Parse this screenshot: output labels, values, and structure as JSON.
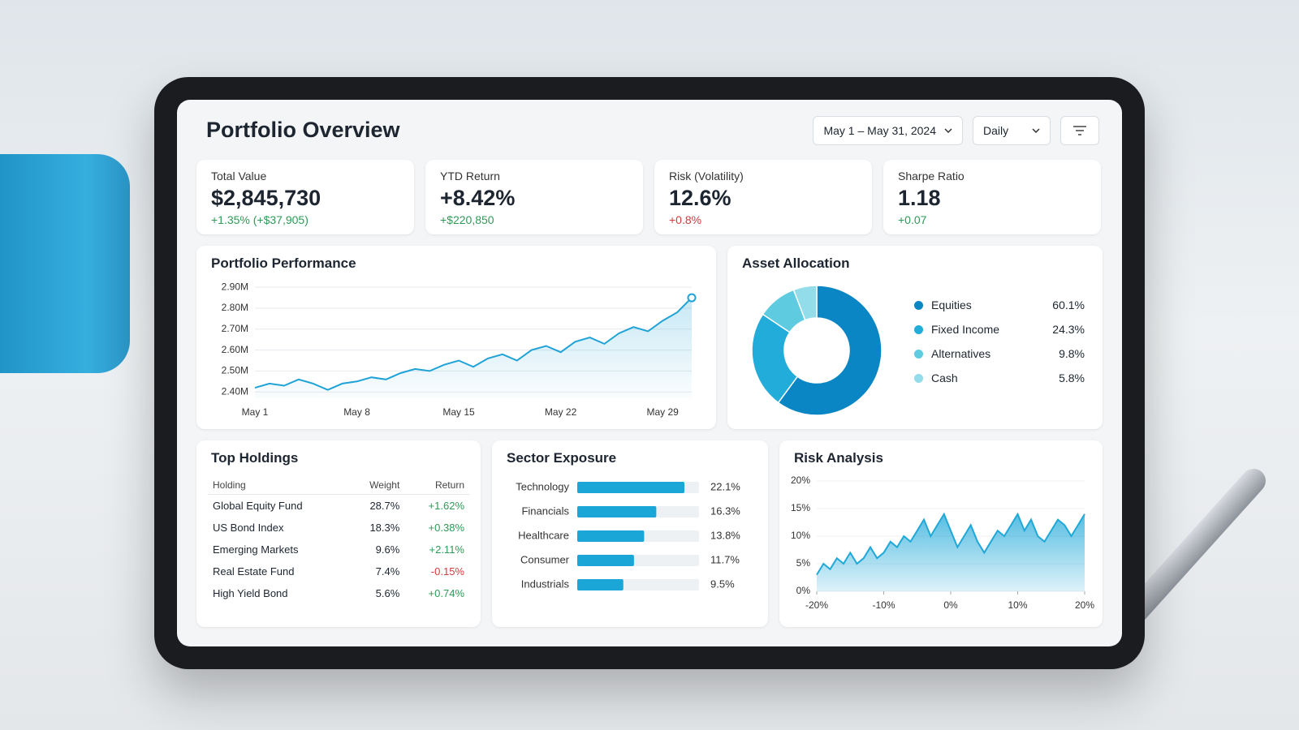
{
  "header": {
    "title": "Portfolio Overview",
    "date_range": "May 1 – May 31, 2024",
    "interval": "Daily"
  },
  "kpis": [
    {
      "label": "Total Value",
      "value": "$2,845,730",
      "change": "+1.35% (+$37,905)",
      "change_color": "#2e9a57"
    },
    {
      "label": "YTD Return",
      "value": "+8.42%",
      "change": "+$220,850",
      "change_color": "#2e9a57"
    },
    {
      "label": "Risk (Volatility)",
      "value": "12.6%",
      "change": "+0.8%",
      "change_color": "#d23b3b"
    },
    {
      "label": "Sharpe Ratio",
      "value": "1.18",
      "change": "+0.07",
      "change_color": "#2e9a57"
    }
  ],
  "performance": {
    "type": "line",
    "title": "Portfolio Performance",
    "categories": [
      "May 1",
      null,
      null,
      null,
      null,
      null,
      null,
      "May 8",
      null,
      null,
      null,
      null,
      null,
      null,
      "May 15",
      null,
      null,
      null,
      null,
      null,
      null,
      "May 22",
      null,
      null,
      null,
      null,
      null,
      null,
      "May 29",
      null,
      null
    ],
    "values": [
      2.42,
      2.44,
      2.43,
      2.46,
      2.44,
      2.41,
      2.44,
      2.45,
      2.47,
      2.46,
      2.49,
      2.51,
      2.5,
      2.53,
      2.55,
      2.52,
      2.56,
      2.58,
      2.55,
      2.6,
      2.62,
      2.59,
      2.64,
      2.66,
      2.63,
      2.68,
      2.71,
      2.69,
      2.74,
      2.78,
      2.85
    ],
    "color": "#1fa3d6",
    "ylim": [
      2.37,
      2.92
    ],
    "yticks": [
      {
        "value": 2.4,
        "label": "2.40M"
      },
      {
        "value": 2.5,
        "label": "2.50M"
      },
      {
        "value": 2.6,
        "label": "2.60M"
      },
      {
        "value": 2.7,
        "label": "2.70M"
      },
      {
        "value": 2.8,
        "label": "2.80M"
      },
      {
        "value": 2.9,
        "label": "2.90M"
      }
    ],
    "grid": true
  },
  "allocation": {
    "type": "donut",
    "title": "Asset Allocation",
    "categories": [
      "Equities",
      "Fixed Income",
      "Alternatives",
      "Cash"
    ],
    "values": [
      60.1,
      24.3,
      9.8,
      5.8
    ],
    "value_labels": [
      "60.1%",
      "24.3%",
      "9.8%",
      "5.8%"
    ],
    "colors": [
      "#0b86c4",
      "#22acd9",
      "#5ecbe0",
      "#93dcea"
    ]
  },
  "holdings": {
    "title": "Top Holdings",
    "columns": [
      "Holding",
      "Weight",
      "Return"
    ],
    "rows": [
      [
        "Global Equity Fund",
        "28.7%",
        "+1.62%"
      ],
      [
        "US Bond Index",
        "18.3%",
        "+0.38%"
      ],
      [
        "Emerging Markets",
        "9.6%",
        "+2.11%"
      ],
      [
        "Real Estate Fund",
        "7.4%",
        "-0.15%"
      ],
      [
        "High Yield Bond",
        "5.6%",
        "+0.74%"
      ]
    ]
  },
  "sectors": {
    "type": "bar",
    "title": "Sector Exposure",
    "categories": [
      "Technology",
      "Financials",
      "Healthcare",
      "Consumer",
      "Industrials"
    ],
    "values": [
      22.1,
      16.3,
      13.8,
      11.7,
      9.5
    ],
    "value_labels": [
      "22.1%",
      "16.3%",
      "13.8%",
      "11.7%",
      "9.5%"
    ],
    "color": "#1aa7d8"
  },
  "risk": {
    "type": "area",
    "title": "Risk Analysis",
    "x": [
      -20,
      -19,
      -18,
      -17,
      -16,
      -15,
      -14,
      -13,
      -12,
      -11,
      -10,
      -9,
      -8,
      -7,
      -6,
      -5,
      -4,
      -3,
      -2,
      -1,
      0,
      1,
      2,
      3,
      4,
      5,
      6,
      7,
      8,
      9,
      10,
      11,
      12,
      13,
      14,
      15,
      16,
      17,
      18,
      19,
      20
    ],
    "values": [
      3,
      5,
      4,
      6,
      5,
      7,
      5,
      6,
      8,
      6,
      7,
      9,
      8,
      10,
      9,
      11,
      13,
      10,
      12,
      14,
      11,
      8,
      10,
      12,
      9,
      7,
      9,
      11,
      10,
      12,
      14,
      11,
      13,
      10,
      9,
      11,
      13,
      12,
      10,
      12,
      14
    ],
    "color": "#1fa8d8",
    "xlim": [
      -20,
      20
    ],
    "xticks": [
      {
        "value": -20,
        "label": "-20%"
      },
      {
        "value": -10,
        "label": "-10%"
      },
      {
        "value": 0,
        "label": "0%"
      },
      {
        "value": 10,
        "label": "10%"
      },
      {
        "value": 20,
        "label": "20%"
      }
    ],
    "ylim": [
      0,
      20
    ],
    "yticks": [
      {
        "value": 0,
        "label": "0%"
      },
      {
        "value": 5,
        "label": "5%"
      },
      {
        "value": 10,
        "label": "10%"
      },
      {
        "value": 15,
        "label": "15%"
      },
      {
        "value": 20,
        "label": "20%"
      }
    ],
    "grid": true
  }
}
